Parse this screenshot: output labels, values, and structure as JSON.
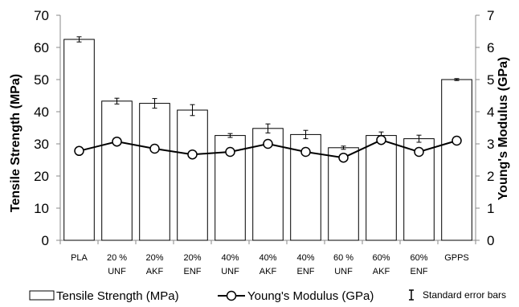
{
  "chart_data": {
    "type": "bar",
    "categories": [
      [
        "PLA"
      ],
      [
        "20 %",
        "UNF"
      ],
      [
        "20%",
        "AKF"
      ],
      [
        "20%",
        "ENF"
      ],
      [
        "40%",
        "UNF"
      ],
      [
        "40%",
        "AKF"
      ],
      [
        "40%",
        "ENF"
      ],
      [
        "60 %",
        "UNF"
      ],
      [
        "60%",
        "AKF"
      ],
      [
        "60%",
        "ENF"
      ],
      [
        "GPPS"
      ]
    ],
    "series": [
      {
        "name": "Tensile Strength (MPa)",
        "type": "bar",
        "axis": "left",
        "values": [
          62.5,
          43.3,
          42.6,
          40.5,
          32.6,
          34.8,
          32.9,
          28.8,
          32.6,
          31.6,
          50.0
        ],
        "errors": [
          0.8,
          0.9,
          1.5,
          1.7,
          0.6,
          1.4,
          1.3,
          0.5,
          1.1,
          1.1,
          0.3
        ]
      },
      {
        "name": "Young's Modulus (GPa)",
        "type": "line",
        "axis": "right",
        "marker": "open-circle",
        "values": [
          2.78,
          3.07,
          2.85,
          2.67,
          2.75,
          3.0,
          2.75,
          2.57,
          3.12,
          2.75,
          3.1
        ]
      }
    ],
    "ylabel": "Tensile  Strength (MPa)",
    "y2label": "Young's Modulus (GPa)",
    "ylim": [
      0,
      70
    ],
    "y2lim": [
      0,
      7
    ],
    "yticks": [
      0,
      10,
      20,
      30,
      40,
      50,
      60,
      70
    ],
    "y2ticks": [
      0,
      1,
      2,
      3,
      4,
      5,
      6,
      7
    ],
    "legend": {
      "position": "bottom",
      "bar_label": "Tensile Strength (MPa)",
      "line_label": "Young's Modulus (GPa)",
      "error_label": "Standard  error bars"
    },
    "grid": false
  }
}
